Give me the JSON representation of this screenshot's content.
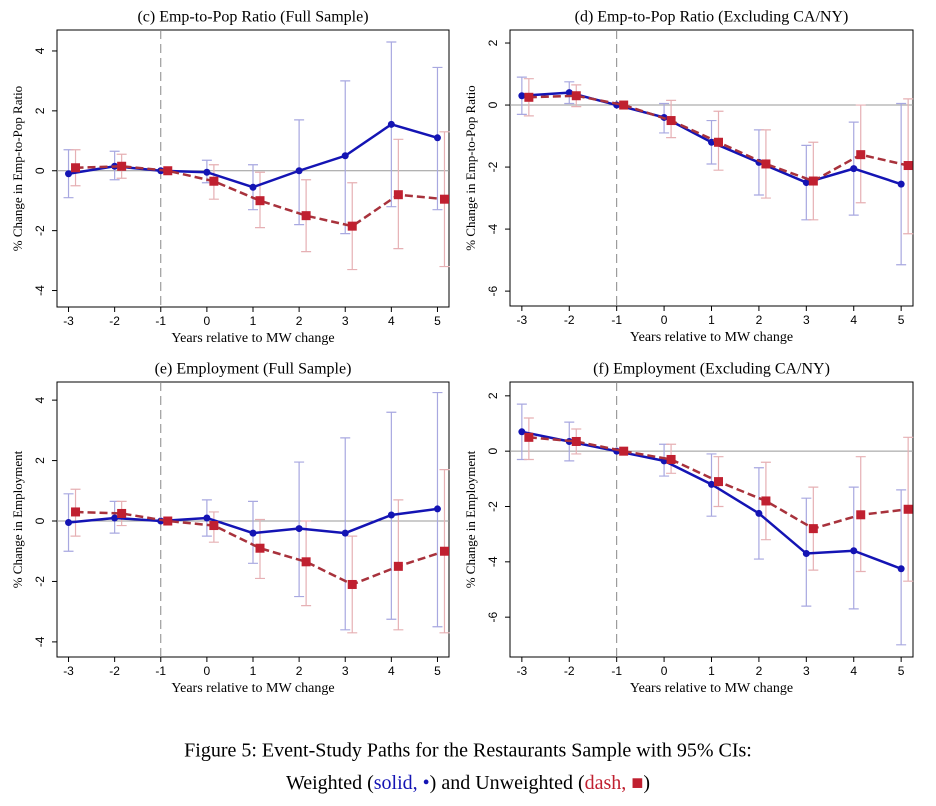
{
  "chart_data": [
    {
      "type": "line",
      "title": "(c) Emp-to-Pop Ratio (Full Sample)",
      "ylabel": "% Change in Emp-to-Pop Ratio",
      "xlabel": "Years relative to MW change",
      "x": [
        -3,
        -2,
        -1,
        0,
        1,
        2,
        3,
        4,
        5
      ],
      "xlim": [
        -3.25,
        5.25
      ],
      "xticks": [
        -3,
        -2,
        -1,
        0,
        1,
        2,
        3,
        4,
        5
      ],
      "ylim": [
        -4.55,
        4.7
      ],
      "yticks": [
        4,
        2,
        0,
        -2,
        -4
      ],
      "reference_x": -1,
      "reference_y": 0,
      "series": [
        {
          "color": "#1414b4",
          "ci_color": "#a8a8e0",
          "marker": "circle",
          "dash": false,
          "values": [
            -0.1,
            0.15,
            0,
            -0.05,
            -0.55,
            0,
            0.5,
            1.55,
            1.1
          ],
          "lower": [
            -0.9,
            -0.3,
            0,
            -0.4,
            -1.3,
            -1.8,
            -2.1,
            -1.2,
            -1.3
          ],
          "upper": [
            0.7,
            0.65,
            0,
            0.35,
            0.2,
            1.7,
            3.0,
            4.3,
            3.45
          ]
        },
        {
          "color": "#a8323c",
          "ci_color": "#e6b0b4",
          "marker": "square",
          "dash": true,
          "values": [
            0.1,
            0.15,
            0,
            -0.35,
            -1.0,
            -1.5,
            -1.85,
            -0.8,
            -0.95
          ],
          "lower": [
            -0.5,
            -0.25,
            0,
            -0.95,
            -1.9,
            -2.7,
            -3.3,
            -2.6,
            -3.2
          ],
          "upper": [
            0.7,
            0.55,
            0,
            0.2,
            -0.05,
            -0.3,
            -0.4,
            1.05,
            1.3
          ]
        }
      ]
    },
    {
      "type": "line",
      "title": "(d) Emp-to-Pop Ratio (Excluding CA/NY)",
      "ylabel": "% Change in Emp-to-Pop Ratio",
      "xlabel": "Years relative to MW change",
      "x": [
        -3,
        -2,
        -1,
        0,
        1,
        2,
        3,
        4,
        5
      ],
      "xlim": [
        -3.25,
        5.25
      ],
      "xticks": [
        -3,
        -2,
        -1,
        0,
        1,
        2,
        3,
        4,
        5
      ],
      "ylim": [
        -6.48,
        2.42
      ],
      "yticks": [
        2,
        0,
        -2,
        -4,
        -6
      ],
      "reference_x": -1,
      "reference_y": 0,
      "series": [
        {
          "color": "#1414b4",
          "ci_color": "#a8a8e0",
          "marker": "circle",
          "dash": false,
          "values": [
            0.3,
            0.4,
            0,
            -0.4,
            -1.2,
            -1.85,
            -2.5,
            -2.05,
            -2.55
          ],
          "lower": [
            -0.3,
            0.05,
            0,
            -0.9,
            -1.9,
            -2.9,
            -3.7,
            -3.55,
            -5.15
          ],
          "upper": [
            0.9,
            0.75,
            0,
            0.05,
            -0.5,
            -0.8,
            -1.3,
            -0.55,
            0.05
          ]
        },
        {
          "color": "#a8323c",
          "ci_color": "#e6b0b4",
          "marker": "square",
          "dash": true,
          "values": [
            0.25,
            0.3,
            0,
            -0.5,
            -1.2,
            -1.9,
            -2.45,
            -1.6,
            -1.95
          ],
          "lower": [
            -0.35,
            -0.05,
            0,
            -1.05,
            -2.1,
            -3.0,
            -3.7,
            -3.15,
            -4.15
          ],
          "upper": [
            0.85,
            0.65,
            0,
            0.15,
            -0.2,
            -0.8,
            -1.2,
            0.0,
            0.2
          ]
        }
      ]
    },
    {
      "type": "line",
      "title": "(e) Employment (Full Sample)",
      "ylabel": "% Change in Employment",
      "xlabel": "Years relative to MW change",
      "x": [
        -3,
        -2,
        -1,
        0,
        1,
        2,
        3,
        4,
        5
      ],
      "xlim": [
        -3.25,
        5.25
      ],
      "xticks": [
        -3,
        -2,
        -1,
        0,
        1,
        2,
        3,
        4,
        5
      ],
      "ylim": [
        -4.5,
        4.6
      ],
      "yticks": [
        4,
        2,
        0,
        -2,
        -4
      ],
      "reference_x": -1,
      "reference_y": 0,
      "series": [
        {
          "color": "#1414b4",
          "ci_color": "#a8a8e0",
          "marker": "circle",
          "dash": false,
          "values": [
            -0.05,
            0.1,
            0,
            0.1,
            -0.4,
            -0.25,
            -0.4,
            0.2,
            0.4
          ],
          "lower": [
            -1.0,
            -0.4,
            0,
            -0.5,
            -1.4,
            -2.5,
            -3.6,
            -3.25,
            -3.5
          ],
          "upper": [
            0.9,
            0.65,
            0,
            0.7,
            0.65,
            1.95,
            2.75,
            3.6,
            4.25
          ]
        },
        {
          "color": "#a8323c",
          "ci_color": "#e6b0b4",
          "marker": "square",
          "dash": true,
          "values": [
            0.3,
            0.25,
            0,
            -0.15,
            -0.9,
            -1.35,
            -2.1,
            -1.5,
            -1.0
          ],
          "lower": [
            -0.5,
            -0.15,
            0,
            -0.7,
            -1.9,
            -2.8,
            -3.7,
            -3.6,
            -3.7
          ],
          "upper": [
            1.05,
            0.65,
            0,
            0.3,
            0.05,
            0.0,
            -0.5,
            0.7,
            1.7
          ]
        }
      ]
    },
    {
      "type": "line",
      "title": "(f) Employment (Excluding CA/NY)",
      "ylabel": "% Change in Employment",
      "xlabel": "Years relative to MW change",
      "x": [
        -3,
        -2,
        -1,
        0,
        1,
        2,
        3,
        4,
        5
      ],
      "xlim": [
        -3.25,
        5.25
      ],
      "xticks": [
        -3,
        -2,
        -1,
        0,
        1,
        2,
        3,
        4,
        5
      ],
      "ylim": [
        -7.44,
        2.5
      ],
      "yticks": [
        2,
        0,
        -2,
        -4,
        -6
      ],
      "reference_x": -1,
      "reference_y": 0,
      "series": [
        {
          "color": "#1414b4",
          "ci_color": "#a8a8e0",
          "marker": "circle",
          "dash": false,
          "values": [
            0.7,
            0.35,
            0,
            -0.35,
            -1.2,
            -2.25,
            -3.7,
            -3.6,
            -4.25
          ],
          "lower": [
            -0.3,
            -0.35,
            0,
            -0.9,
            -2.35,
            -3.9,
            -5.6,
            -5.7,
            -7.0
          ],
          "upper": [
            1.7,
            1.05,
            0,
            0.25,
            -0.1,
            -0.6,
            -1.7,
            -1.3,
            -1.4
          ]
        },
        {
          "color": "#a8323c",
          "ci_color": "#e6b0b4",
          "marker": "square",
          "dash": true,
          "values": [
            0.5,
            0.35,
            0,
            -0.3,
            -1.1,
            -1.8,
            -2.8,
            -2.3,
            -2.1
          ],
          "lower": [
            -0.3,
            -0.1,
            0,
            -0.8,
            -2.0,
            -3.2,
            -4.3,
            -4.35,
            -4.7
          ],
          "upper": [
            1.2,
            0.8,
            0,
            0.25,
            -0.2,
            -0.4,
            -1.3,
            -0.2,
            0.5
          ]
        }
      ]
    }
  ],
  "caption": {
    "line1": "Figure 5: Event-Study Paths for the Restaurants Sample with 95% CIs:",
    "line2": [
      "Weighted (",
      "solid, •",
      ") and Unweighted (",
      "dash, ■",
      ")"
    ]
  }
}
